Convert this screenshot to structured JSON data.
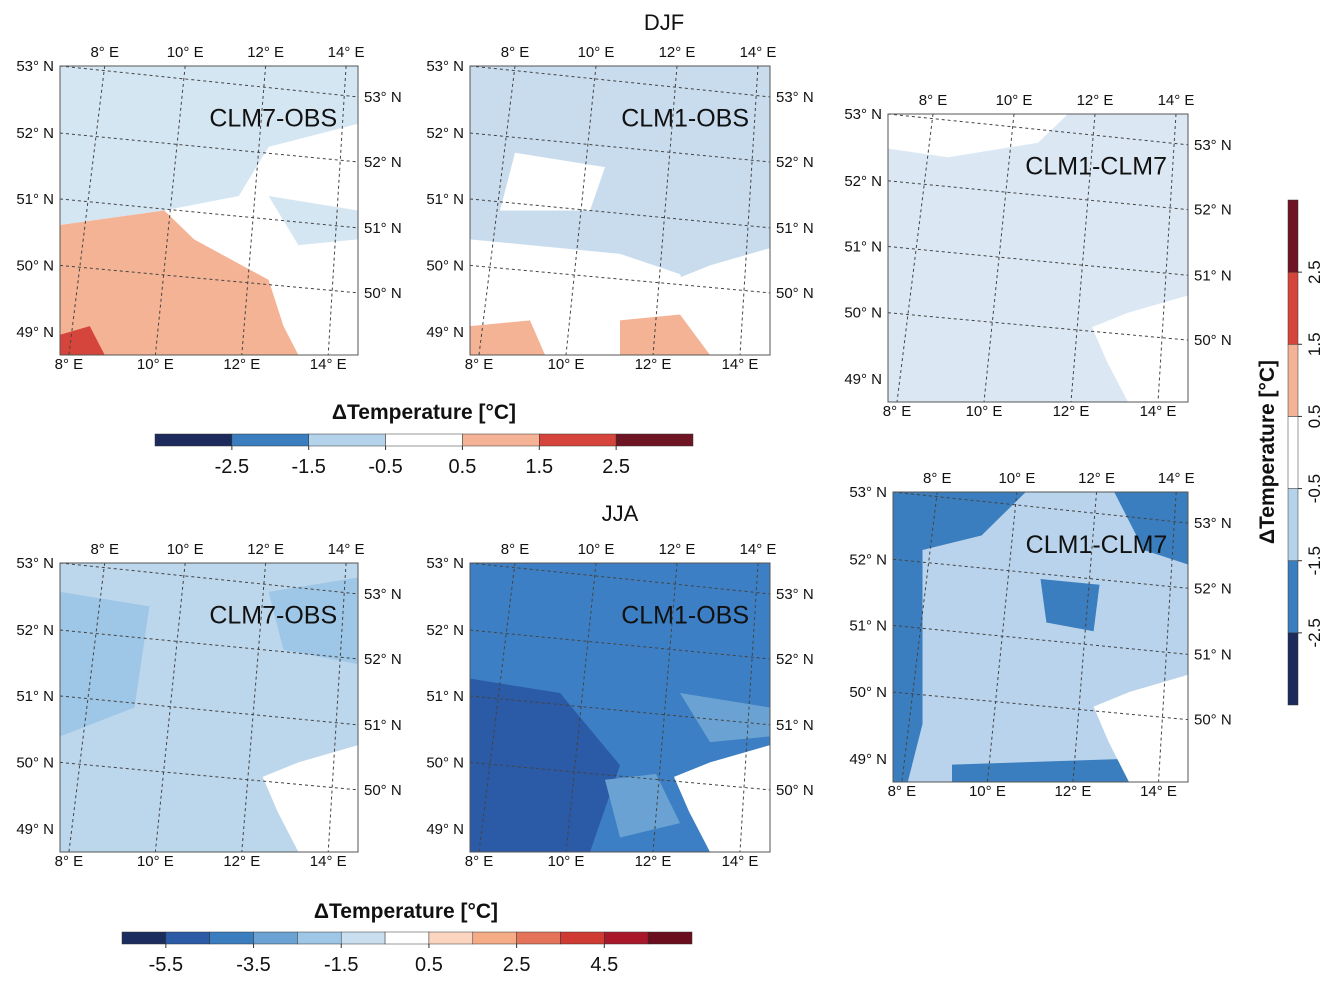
{
  "titles": {
    "djf": "DJF",
    "jja": "JJA"
  },
  "lon_labels": [
    "8° E",
    "10° E",
    "12° E",
    "14° E"
  ],
  "lat_labels": [
    "53° N",
    "52° N",
    "51° N",
    "50° N",
    "49° N"
  ],
  "panels": [
    {
      "label": "CLM7-OBS"
    },
    {
      "label": "CLM1-OBS"
    },
    {
      "label": "CLM1-CLM7"
    },
    {
      "label": "CLM7-OBS"
    },
    {
      "label": "CLM1-OBS"
    },
    {
      "label": "CLM1-CLM7"
    }
  ],
  "colorbars": [
    {
      "label": "ΔTemperature [°C]",
      "lim": [
        -3.5,
        3.5
      ],
      "ticks": [
        -2.5,
        -1.5,
        -0.5,
        0.5,
        1.5,
        2.5
      ],
      "colors": [
        "#1c2a5c",
        "#3a7ebf",
        "#b4d3ea",
        "#ffffff",
        "#f4b394",
        "#d6453b",
        "#6e1423"
      ]
    },
    {
      "label": "ΔTemperature [°C]",
      "lim": [
        -3.5,
        3.5
      ],
      "ticks": [
        -2.5,
        -1.5,
        -0.5,
        0.5,
        1.5,
        2.5
      ],
      "colors": [
        "#1c2a5c",
        "#3a7ebf",
        "#b4d3ea",
        "#ffffff",
        "#f4b394",
        "#d6453b",
        "#6e1423"
      ]
    },
    {
      "label": "ΔTemperature [°C]",
      "lim": [
        -6.5,
        6.5
      ],
      "ticks": [
        -5.5,
        -3.5,
        -1.5,
        0.5,
        2.5,
        4.5
      ],
      "colors": [
        "#1b2d5e",
        "#2b5aa6",
        "#3a7ebf",
        "#6aa3d3",
        "#9ec6e6",
        "#c9dff0",
        "#ffffff",
        "#fbd5c0",
        "#f4ab86",
        "#e5735a",
        "#cf3a32",
        "#a8172a",
        "#6a0d1d"
      ]
    }
  ]
}
